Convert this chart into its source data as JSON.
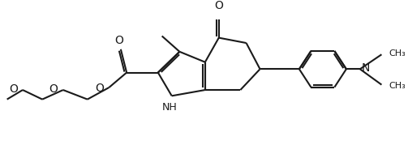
{
  "bg_color": "#FFFFFF",
  "line_color": "#1a1a1a",
  "line_width": 1.5,
  "font_size_label": 9,
  "fig_width": 5.03,
  "fig_height": 1.79,
  "dpi": 100,
  "xlim": [
    0,
    10.06
  ],
  "ylim": [
    0,
    3.58
  ]
}
